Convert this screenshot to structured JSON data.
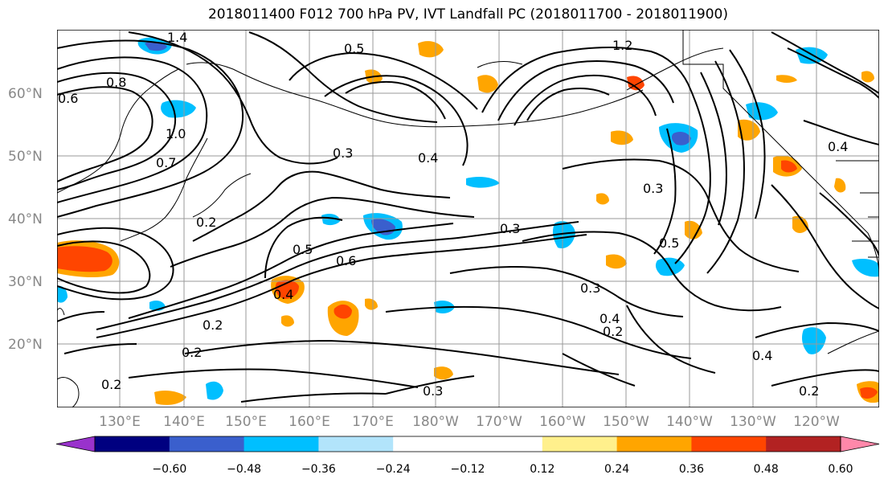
{
  "title": "2018011400 F012 700 hPa PV, IVT Landfall PC (2018011700 - 2018011900)",
  "lat_labels": [
    "60°N",
    "50°N",
    "40°N",
    "30°N",
    "20°N"
  ],
  "lon_labels": [
    "130°E",
    "140°E",
    "150°E",
    "160°E",
    "170°E",
    "180°W",
    "170°W",
    "160°W",
    "150°W",
    "140°W",
    "130°W",
    "120°W"
  ],
  "contour_labels": [
    "1.4",
    "1.2",
    "0.6",
    "0.5",
    "0.8",
    "1.0",
    "0.7",
    "0.4",
    "0.3",
    "0.2",
    "0.6",
    "0.5",
    "0.3",
    "0.4",
    "0.2",
    "0.3",
    "0.4",
    "0.2",
    "0.3",
    "0.2",
    "0.4",
    "0.3",
    "0.5",
    "0.4",
    "0.2",
    "0.2"
  ],
  "colorbar": {
    "colors": [
      "#9932cc",
      "#000080",
      "#3a5fcd",
      "#00bfff",
      "#b2e4fb",
      "#ffffff",
      "#ffffff",
      "#fff08c",
      "#ffa500",
      "#ff4500",
      "#b22222",
      "#ff88aa"
    ],
    "tick_labels": [
      "−0.60",
      "−0.48",
      "−0.36",
      "−0.24",
      "−0.12",
      "0.12",
      "0.24",
      "0.36",
      "0.48",
      "0.60"
    ]
  }
}
